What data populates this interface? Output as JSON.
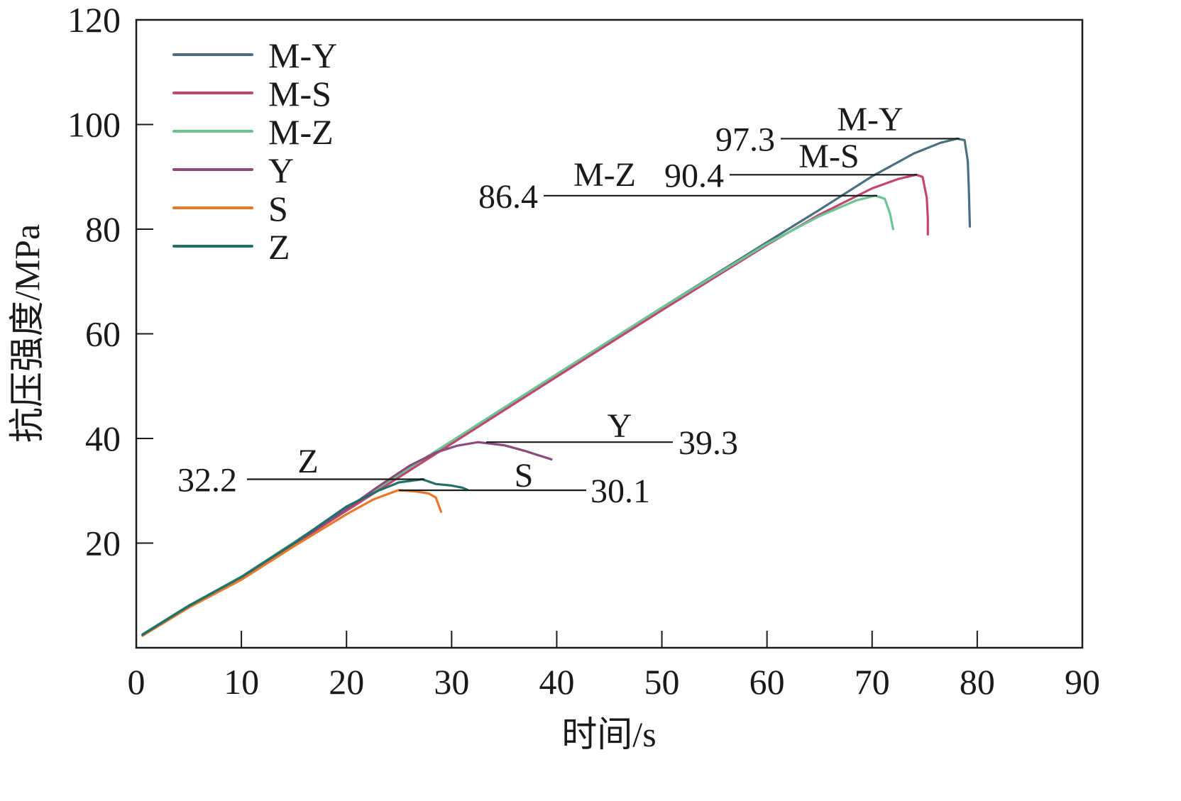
{
  "chart_data": {
    "type": "line",
    "xlabel": "时间/s",
    "ylabel": "抗压强度/MPa",
    "xlim": [
      0,
      90
    ],
    "ylim": [
      0,
      120
    ],
    "xticks": [
      "0",
      "10",
      "20",
      "30",
      "40",
      "50",
      "60",
      "70",
      "80",
      "90"
    ],
    "yticks": [
      "20",
      "40",
      "60",
      "80",
      "100",
      "120"
    ],
    "xtick_values": [
      0,
      10,
      20,
      30,
      40,
      50,
      60,
      70,
      80,
      90
    ],
    "ytick_values": [
      20,
      40,
      60,
      80,
      100,
      120
    ],
    "grid": false,
    "legend_position": "top-left",
    "series": [
      {
        "name": "M-Y",
        "color": "#4a6f80",
        "points": [
          [
            0.6,
            2.5
          ],
          [
            5,
            8
          ],
          [
            10,
            13.5
          ],
          [
            20,
            26.5
          ],
          [
            30,
            39.3
          ],
          [
            40,
            52.2
          ],
          [
            50,
            65
          ],
          [
            60,
            77.5
          ],
          [
            65,
            83.7
          ],
          [
            70,
            90.1
          ],
          [
            74,
            94.5
          ],
          [
            76.5,
            96.5
          ],
          [
            78.1,
            97.3
          ],
          [
            78.8,
            97
          ],
          [
            79.1,
            93
          ],
          [
            79.2,
            88
          ],
          [
            79.3,
            80.5
          ]
        ]
      },
      {
        "name": "M-S",
        "color": "#c2456e",
        "points": [
          [
            0.6,
            2.4
          ],
          [
            5,
            7.9
          ],
          [
            10,
            13.3
          ],
          [
            20,
            26.2
          ],
          [
            30,
            39
          ],
          [
            40,
            51.8
          ],
          [
            50,
            64.5
          ],
          [
            60,
            77
          ],
          [
            65,
            82.8
          ],
          [
            70,
            87.8
          ],
          [
            72.5,
            89.6
          ],
          [
            74.2,
            90.4
          ],
          [
            74.8,
            90
          ],
          [
            75.2,
            86
          ],
          [
            75.3,
            82
          ],
          [
            75.3,
            79
          ]
        ]
      },
      {
        "name": "M-Z",
        "color": "#6cc493",
        "points": [
          [
            0.6,
            2.6
          ],
          [
            5,
            8.1
          ],
          [
            10,
            13.6
          ],
          [
            20,
            26.7
          ],
          [
            30,
            39.5
          ],
          [
            40,
            52.3
          ],
          [
            50,
            65
          ],
          [
            60,
            77.2
          ],
          [
            65,
            82.5
          ],
          [
            68.5,
            85.5
          ],
          [
            70.3,
            86.4
          ],
          [
            71.2,
            85.8
          ],
          [
            71.7,
            83
          ],
          [
            72,
            80
          ]
        ]
      },
      {
        "name": "Y",
        "color": "#8a4a7c",
        "points": [
          [
            0.6,
            2.5
          ],
          [
            5,
            8
          ],
          [
            10,
            13.4
          ],
          [
            15,
            19.8
          ],
          [
            20,
            26.5
          ],
          [
            23,
            30.8
          ],
          [
            26,
            34.8
          ],
          [
            28.5,
            37.3
          ],
          [
            30.5,
            38.6
          ],
          [
            32.5,
            39.3
          ],
          [
            35,
            38.7
          ],
          [
            37,
            37.6
          ],
          [
            39.5,
            36
          ]
        ]
      },
      {
        "name": "S",
        "color": "#e9772a",
        "points": [
          [
            0.6,
            2.3
          ],
          [
            5,
            7.7
          ],
          [
            10,
            13
          ],
          [
            15,
            19.4
          ],
          [
            20,
            25.5
          ],
          [
            22.5,
            28.3
          ],
          [
            24.9,
            30.1
          ],
          [
            26.5,
            29.9
          ],
          [
            27.8,
            29.5
          ],
          [
            28.5,
            28.7
          ],
          [
            29,
            26
          ]
        ]
      },
      {
        "name": "Z",
        "color": "#1f6f6c",
        "points": [
          [
            0.6,
            2.5
          ],
          [
            5,
            8
          ],
          [
            10,
            13.5
          ],
          [
            15,
            20
          ],
          [
            20,
            27
          ],
          [
            23,
            30
          ],
          [
            25,
            31.6
          ],
          [
            27.2,
            32.2
          ],
          [
            28.5,
            31.3
          ],
          [
            30,
            31
          ],
          [
            31,
            30.6
          ],
          [
            31.5,
            30.2
          ]
        ]
      }
    ],
    "annotations": [
      {
        "text": "97.3",
        "series_label": "M-Y",
        "value": 97.3
      },
      {
        "text": "90.4",
        "series_label": "M-S",
        "value": 90.4
      },
      {
        "text": "86.4",
        "series_label": "M-Z",
        "value": 86.4
      },
      {
        "text": "39.3",
        "series_label": "Y",
        "value": 39.3
      },
      {
        "text": "32.2",
        "series_label": "Z",
        "value": 32.2
      },
      {
        "text": "30.1",
        "series_label": "S",
        "value": 30.1
      }
    ]
  }
}
